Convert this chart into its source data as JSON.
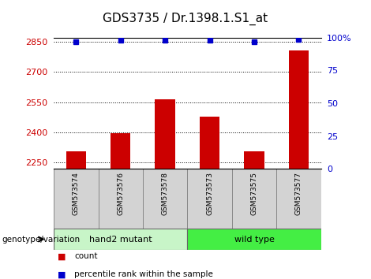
{
  "title": "GDS3735 / Dr.1398.1.S1_at",
  "samples": [
    "GSM573574",
    "GSM573576",
    "GSM573578",
    "GSM573573",
    "GSM573575",
    "GSM573577"
  ],
  "counts": [
    2305,
    2398,
    2565,
    2478,
    2305,
    2805
  ],
  "percentile_ranks": [
    97,
    98,
    98,
    98,
    97,
    98.5
  ],
  "ylim_left": [
    2220,
    2870
  ],
  "ylim_right": [
    0,
    100
  ],
  "yticks_left": [
    2250,
    2400,
    2550,
    2700,
    2850
  ],
  "yticks_right": [
    0,
    25,
    50,
    75,
    100
  ],
  "ytick_labels_right": [
    "0",
    "25",
    "50",
    "75",
    "100%"
  ],
  "bar_color": "#cc0000",
  "dot_color": "#0000cc",
  "bar_width": 0.45,
  "group_label": "genotype/variation",
  "legend_count_label": "count",
  "legend_pct_label": "percentile rank within the sample",
  "title_fontsize": 11,
  "axis_color_left": "#cc0000",
  "axis_color_right": "#0000cc",
  "tick_fontsize": 8,
  "group_colors": [
    "#c8f5c8",
    "#44dd44"
  ]
}
